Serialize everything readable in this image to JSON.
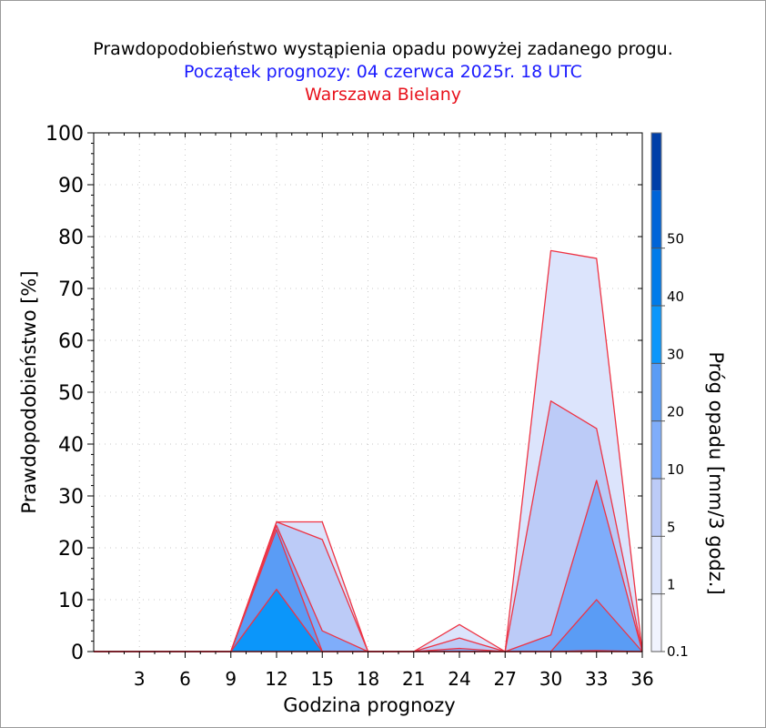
{
  "title": "Prawdopodobieństwo wystąpienia opadu powyżej zadanego progu.",
  "subtitle": "Początek prognozy: 04 czerwca 2025r. 18 UTC",
  "location": "Warszawa Bielany",
  "colors": {
    "title": "#000000",
    "subtitle": "#1a1aff",
    "location": "#e8121c",
    "series_outline": "#ee3344"
  },
  "chart_data": {
    "type": "area",
    "xlabel": "Godzina prognozy",
    "ylabel": "Prawdopodobieństwo [%]",
    "colorbar_label": "Próg opadu [mm/3 godz.]",
    "xlim": [
      0,
      36
    ],
    "ylim": [
      0,
      100
    ],
    "x_ticks": [
      3,
      6,
      9,
      12,
      15,
      18,
      21,
      24,
      27,
      30,
      33,
      36
    ],
    "y_ticks": [
      0,
      10,
      20,
      30,
      40,
      50,
      60,
      70,
      80,
      90,
      100
    ],
    "grid": true,
    "x": [
      0,
      3,
      6,
      9,
      12,
      15,
      18,
      21,
      24,
      27,
      30,
      33,
      36
    ],
    "series": [
      {
        "threshold": 0.1,
        "color": "#dce4fc",
        "values": [
          0,
          0,
          0,
          0,
          25,
          25,
          0,
          0,
          5.2,
          0,
          77.3,
          75.8,
          0
        ]
      },
      {
        "threshold": 1,
        "color": "#bccbf7",
        "values": [
          0,
          0,
          0,
          0,
          25,
          21.6,
          0,
          0,
          2.6,
          0,
          48.3,
          43,
          0
        ]
      },
      {
        "threshold": 5,
        "color": "#7fadfa",
        "values": [
          0,
          0,
          0,
          0,
          24.3,
          4,
          0,
          0,
          0.6,
          0,
          3.2,
          33,
          0
        ]
      },
      {
        "threshold": 10,
        "color": "#5a9cf5",
        "values": [
          0,
          0,
          0,
          0,
          23.5,
          0,
          0,
          0,
          0,
          0,
          0,
          10,
          0
        ]
      },
      {
        "threshold": 20,
        "color": "#0b96fa",
        "values": [
          0,
          0,
          0,
          0,
          12,
          0,
          0,
          0,
          0,
          0,
          0,
          0.2,
          0
        ]
      },
      {
        "threshold": 30,
        "color": "#007bea",
        "values": [
          0,
          0,
          0,
          0,
          0,
          0,
          0,
          0,
          0,
          0,
          0,
          0,
          0
        ]
      },
      {
        "threshold": 40,
        "color": "#0064d8",
        "values": [
          0,
          0,
          0,
          0,
          0,
          0,
          0,
          0,
          0,
          0,
          0,
          0,
          0
        ]
      },
      {
        "threshold": 50,
        "color": "#003fa8",
        "values": [
          0,
          0,
          0,
          0,
          0,
          0,
          0,
          0,
          0,
          0,
          0,
          0,
          0
        ]
      }
    ],
    "colorbar": {
      "ticks": [
        "0.1",
        "1",
        "5",
        "10",
        "20",
        "30",
        "40",
        "50"
      ],
      "bands": [
        "#f1f3fe",
        "#dce4fc",
        "#bccbf7",
        "#7fadfa",
        "#5a9cf5",
        "#0b96fa",
        "#007bea",
        "#0064d8",
        "#003fa8"
      ]
    }
  }
}
